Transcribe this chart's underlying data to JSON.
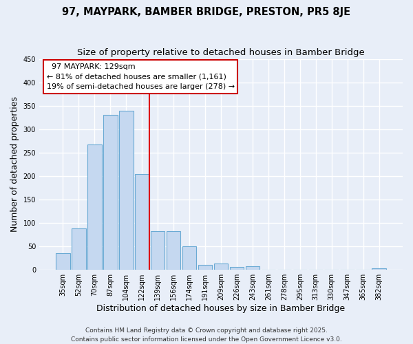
{
  "title1": "97, MAYPARK, BAMBER BRIDGE, PRESTON, PR5 8JE",
  "title2": "Size of property relative to detached houses in Bamber Bridge",
  "xlabel": "Distribution of detached houses by size in Bamber Bridge",
  "ylabel": "Number of detached properties",
  "bar_color": "#c5d8f0",
  "bar_edge_color": "#6aaad4",
  "background_color": "#e8eef8",
  "grid_color": "#ffffff",
  "categories": [
    "35sqm",
    "52sqm",
    "70sqm",
    "87sqm",
    "104sqm",
    "122sqm",
    "139sqm",
    "156sqm",
    "174sqm",
    "191sqm",
    "209sqm",
    "226sqm",
    "243sqm",
    "261sqm",
    "278sqm",
    "295sqm",
    "313sqm",
    "330sqm",
    "347sqm",
    "365sqm",
    "382sqm"
  ],
  "values": [
    35,
    88,
    268,
    330,
    340,
    205,
    82,
    82,
    50,
    10,
    13,
    6,
    7,
    0,
    0,
    0,
    0,
    0,
    0,
    0,
    3
  ],
  "ylim": [
    0,
    450
  ],
  "yticks": [
    0,
    50,
    100,
    150,
    200,
    250,
    300,
    350,
    400,
    450
  ],
  "marker_line_color": "#dd0000",
  "annotation_line1": "97 MAYPARK: 129sqm",
  "annotation_line2": "← 81% of detached houses are smaller (1,161)",
  "annotation_line3": "19% of semi-detached houses are larger (278) →",
  "annotation_box_facecolor": "#ffffff",
  "annotation_box_edgecolor": "#cc0000",
  "footer1": "Contains HM Land Registry data © Crown copyright and database right 2025.",
  "footer2": "Contains public sector information licensed under the Open Government Licence v3.0.",
  "title_fontsize": 10.5,
  "subtitle_fontsize": 9.5,
  "axis_label_fontsize": 9,
  "tick_fontsize": 7,
  "annotation_fontsize": 8,
  "footer_fontsize": 6.5
}
